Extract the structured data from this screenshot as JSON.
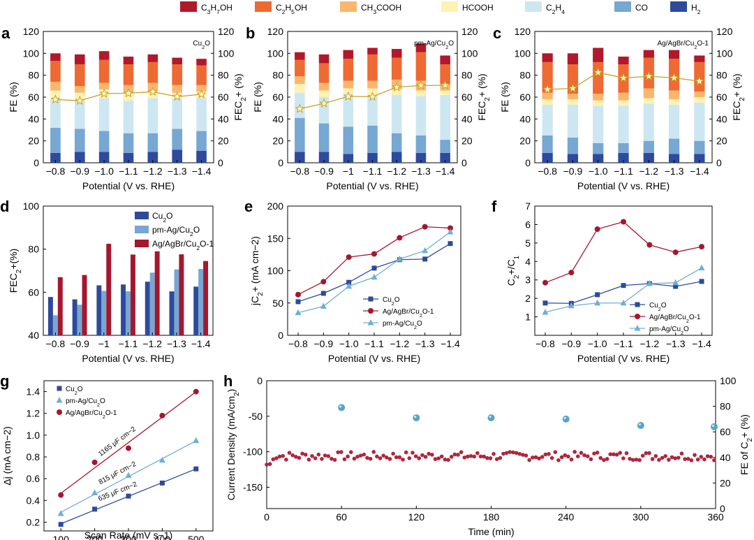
{
  "legend_top": [
    {
      "label": "C3H7OH",
      "color": "#b2182b"
    },
    {
      "label": "C2H5OH",
      "color": "#ef6a32"
    },
    {
      "label": "CH3COOH",
      "color": "#fbb66e"
    },
    {
      "label": "HCOOH",
      "color": "#fff2b2"
    },
    {
      "label": "C2H4",
      "color": "#cde7f2"
    },
    {
      "label": "CO",
      "color": "#77a7d3"
    },
    {
      "label": "H2",
      "color": "#2e4a9c"
    }
  ],
  "chart_data": [
    {
      "id": "a",
      "type": "stacked-bar",
      "panel_label": "a",
      "annotation": "Cu2O",
      "categories": [
        "−0.8",
        "−0.9",
        "−1.0",
        "−1.1",
        "−1.2",
        "−1.3",
        "−1.4"
      ],
      "xlabel": "Potential (V vs. RHE)",
      "ylabel": "FE (%)",
      "y2label": "FEC2+ (%)",
      "ylim": [
        0,
        120
      ],
      "y2lim": [
        0,
        120
      ],
      "series": [
        {
          "name": "H2",
          "values": [
            9,
            10,
            10,
            9,
            10,
            12,
            11
          ]
        },
        {
          "name": "CO",
          "values": [
            23,
            21,
            19,
            18,
            17,
            19,
            18
          ]
        },
        {
          "name": "C2H4",
          "values": [
            26,
            26,
            30,
            30,
            32,
            28,
            30
          ]
        },
        {
          "name": "HCOOH",
          "values": [
            8,
            7,
            8,
            7,
            6,
            5,
            6
          ]
        },
        {
          "name": "CH3COOH",
          "values": [
            8,
            6,
            6,
            7,
            8,
            7,
            6
          ]
        },
        {
          "name": "C2H5OH",
          "values": [
            19,
            20,
            21,
            19,
            19,
            19,
            18
          ]
        },
        {
          "name": "C3H7OH",
          "values": [
            7,
            9,
            8,
            7,
            7,
            6,
            6
          ]
        }
      ],
      "fe_c2": [
        57.8,
        56.7,
        63.2,
        63.6,
        64.9,
        60.4,
        62.6
      ]
    },
    {
      "id": "b",
      "type": "stacked-bar",
      "panel_label": "b",
      "annotation": "pm-Ag/Cu2O",
      "categories": [
        "−0.8",
        "−0.9",
        "−1",
        "−1.1",
        "−1.2",
        "−1.3",
        "−1.4"
      ],
      "xlabel": "Potential (V vs. RHE)",
      "ylabel": "FE (%)",
      "y2label": "FEC2+ (%)",
      "ylim": [
        0,
        120
      ],
      "y2lim": [
        0,
        120
      ],
      "series": [
        {
          "name": "H2",
          "values": [
            10,
            10,
            8,
            9,
            10,
            9,
            9
          ]
        },
        {
          "name": "CO",
          "values": [
            31,
            26,
            25,
            25,
            17,
            16,
            12
          ]
        },
        {
          "name": "C2H4",
          "values": [
            23,
            24,
            30,
            28,
            35,
            36,
            41
          ]
        },
        {
          "name": "HCOOH",
          "values": [
            8,
            6,
            5,
            6,
            5,
            5,
            4
          ]
        },
        {
          "name": "CH3COOH",
          "values": [
            7,
            7,
            7,
            7,
            9,
            9,
            6
          ]
        },
        {
          "name": "C2H5OH",
          "values": [
            15,
            18,
            20,
            24,
            20,
            26,
            18
          ]
        },
        {
          "name": "C3H7OH",
          "values": [
            7,
            8,
            8,
            6,
            8,
            8,
            8
          ]
        }
      ],
      "fe_c2": [
        49.3,
        54.2,
        60.6,
        60.4,
        69.1,
        70.6,
        70.8
      ]
    },
    {
      "id": "c",
      "type": "stacked-bar",
      "panel_label": "c",
      "annotation": "Ag/AgBr/Cu2O-1",
      "categories": [
        "−0.8",
        "−0.9",
        "−1.0",
        "−1.1",
        "−1.2",
        "−1.3",
        "−1.4"
      ],
      "xlabel": "Potential (V vs. RHE)",
      "ylabel": "FE (%)",
      "y2label": "FEC2+ (%)",
      "ylim": [
        0,
        120
      ],
      "y2lim": [
        0,
        120
      ],
      "series": [
        {
          "name": "H2",
          "values": [
            9,
            8,
            8,
            9,
            9,
            8,
            8
          ]
        },
        {
          "name": "CO",
          "values": [
            16,
            15,
            10,
            9,
            11,
            14,
            12
          ]
        },
        {
          "name": "C2H4",
          "values": [
            28,
            30,
            34,
            34,
            34,
            31,
            35
          ]
        },
        {
          "name": "HCOOH",
          "values": [
            5,
            5,
            5,
            5,
            5,
            5,
            5
          ]
        },
        {
          "name": "CH3COOH",
          "values": [
            6,
            5,
            6,
            7,
            9,
            8,
            5
          ]
        },
        {
          "name": "C2H5OH",
          "values": [
            28,
            27,
            29,
            26,
            28,
            29,
            27
          ]
        },
        {
          "name": "C3H7OH",
          "values": [
            8,
            10,
            13,
            7,
            7,
            8,
            6
          ]
        }
      ],
      "fe_c2": [
        67,
        68,
        82.5,
        77.5,
        79,
        77.6,
        74.5
      ]
    },
    {
      "id": "d",
      "type": "bar",
      "panel_label": "d",
      "categories": [
        "−0.8",
        "−0.9",
        "−1",
        "−1.1",
        "−1.2",
        "−1.3",
        "−1.4"
      ],
      "xlabel": "Potential (V vs. RHE)",
      "ylabel": "FEC2+(%)",
      "ylim": [
        40,
        100
      ],
      "series": [
        {
          "name": "Cu2O",
          "color": "#2e4a9c",
          "values": [
            57.8,
            56.7,
            63.2,
            63.6,
            64.9,
            60.4,
            62.6
          ]
        },
        {
          "name": "pm-Ag/Cu2O",
          "color": "#77a7d3",
          "values": [
            49.3,
            54.2,
            60.6,
            60.4,
            69.1,
            70.6,
            70.8
          ]
        },
        {
          "name": "Ag/AgBr/Cu2O-1",
          "color": "#a5172e",
          "values": [
            67,
            68,
            82.5,
            77.5,
            79,
            77.6,
            74.5
          ]
        }
      ]
    },
    {
      "id": "e",
      "type": "line",
      "panel_label": "e",
      "categories": [
        "−0.8",
        "−0.9",
        "−1.0",
        "−1.1",
        "−1.2",
        "−1.3",
        "−1.4"
      ],
      "xlabel": "Potential (V vs. RHE)",
      "ylabel": "jC2+ (mA cm−2)",
      "ylim": [
        0,
        200
      ],
      "series": [
        {
          "name": "Cu2O",
          "color": "#2e4a9c",
          "marker": "square",
          "values": [
            52,
            65,
            82,
            104,
            117,
            118,
            142
          ]
        },
        {
          "name": "Ag/AgBr/Cu2O-1",
          "color": "#a5172e",
          "marker": "circle",
          "values": [
            63,
            83,
            121,
            126,
            151,
            168,
            166
          ]
        },
        {
          "name": "pm-Ag/Cu2O",
          "color": "#6fb0d2",
          "marker": "triangle",
          "values": [
            35,
            45,
            76,
            90,
            118,
            131,
            160
          ]
        }
      ]
    },
    {
      "id": "f",
      "type": "line",
      "panel_label": "f",
      "categories": [
        "−0.8",
        "−0.9",
        "−1.0",
        "−1.1",
        "−1.2",
        "−1.3",
        "−1.4"
      ],
      "xlabel": "Potential (V vs. RHE)",
      "ylabel": "C2+/C1",
      "ylim": [
        0,
        7
      ],
      "series": [
        {
          "name": "Cu2O",
          "color": "#2e4a9c",
          "marker": "square",
          "values": [
            1.75,
            1.73,
            2.2,
            2.7,
            2.8,
            2.65,
            2.92
          ]
        },
        {
          "name": "Ag/AgBr/Cu2O-1",
          "color": "#a5172e",
          "marker": "circle",
          "values": [
            2.85,
            3.4,
            5.75,
            6.15,
            4.9,
            4.5,
            4.8
          ]
        },
        {
          "name": "pm-Ag/Cu2O",
          "color": "#6fb0d2",
          "marker": "triangle",
          "values": [
            1.25,
            1.6,
            1.75,
            1.75,
            2.8,
            2.85,
            3.65
          ]
        }
      ]
    },
    {
      "id": "g",
      "type": "scatter",
      "panel_label": "g",
      "xlabel": "Scan Rate (mV s−1)",
      "ylabel": "Δj (mA cm−2)",
      "xlim": [
        50,
        550
      ],
      "ylim": [
        0.12,
        1.5
      ],
      "xticks": [
        100,
        200,
        300,
        400,
        500
      ],
      "yticks": [
        0.2,
        0.4,
        0.6,
        0.8,
        1.0,
        1.2,
        1.4
      ],
      "x": [
        100,
        200,
        300,
        400,
        500
      ],
      "series": [
        {
          "name": "Cu2O",
          "color": "#2e4a9c",
          "marker": "square",
          "values": [
            0.18,
            0.32,
            0.44,
            0.56,
            0.69
          ],
          "fit": "635 μF cm−2"
        },
        {
          "name": "pm-Ag/Cu2O",
          "color": "#6fb0d2",
          "marker": "triangle",
          "values": [
            0.28,
            0.47,
            0.63,
            0.77,
            0.95
          ],
          "fit": "815 μF cm−2"
        },
        {
          "name": "Ag/AgBr/Cu2O-1",
          "color": "#a5172e",
          "marker": "circle",
          "values": [
            0.45,
            0.75,
            0.88,
            1.18,
            1.4
          ],
          "fit": "1165 μF cm−2"
        }
      ]
    },
    {
      "id": "h",
      "type": "scatter",
      "panel_label": "h",
      "xlabel": "Time (min)",
      "ylabel": "Current Density (mA/cm2)",
      "y2label": "FE of C2+ (%)",
      "xlim": [
        0,
        360
      ],
      "ylim": [
        -180,
        0
      ],
      "y2lim": [
        0,
        100
      ],
      "xticks": [
        0,
        60,
        120,
        180,
        240,
        300,
        360
      ],
      "yticks": [
        0,
        -50,
        -100,
        -150
      ],
      "y2ticks": [
        0,
        20,
        40,
        60,
        80,
        100
      ],
      "fe_points": {
        "x": [
          60,
          120,
          180,
          240,
          300,
          360
        ],
        "values": [
          79,
          71,
          71,
          70,
          65,
          64
        ]
      },
      "current_mean": -106
    }
  ]
}
